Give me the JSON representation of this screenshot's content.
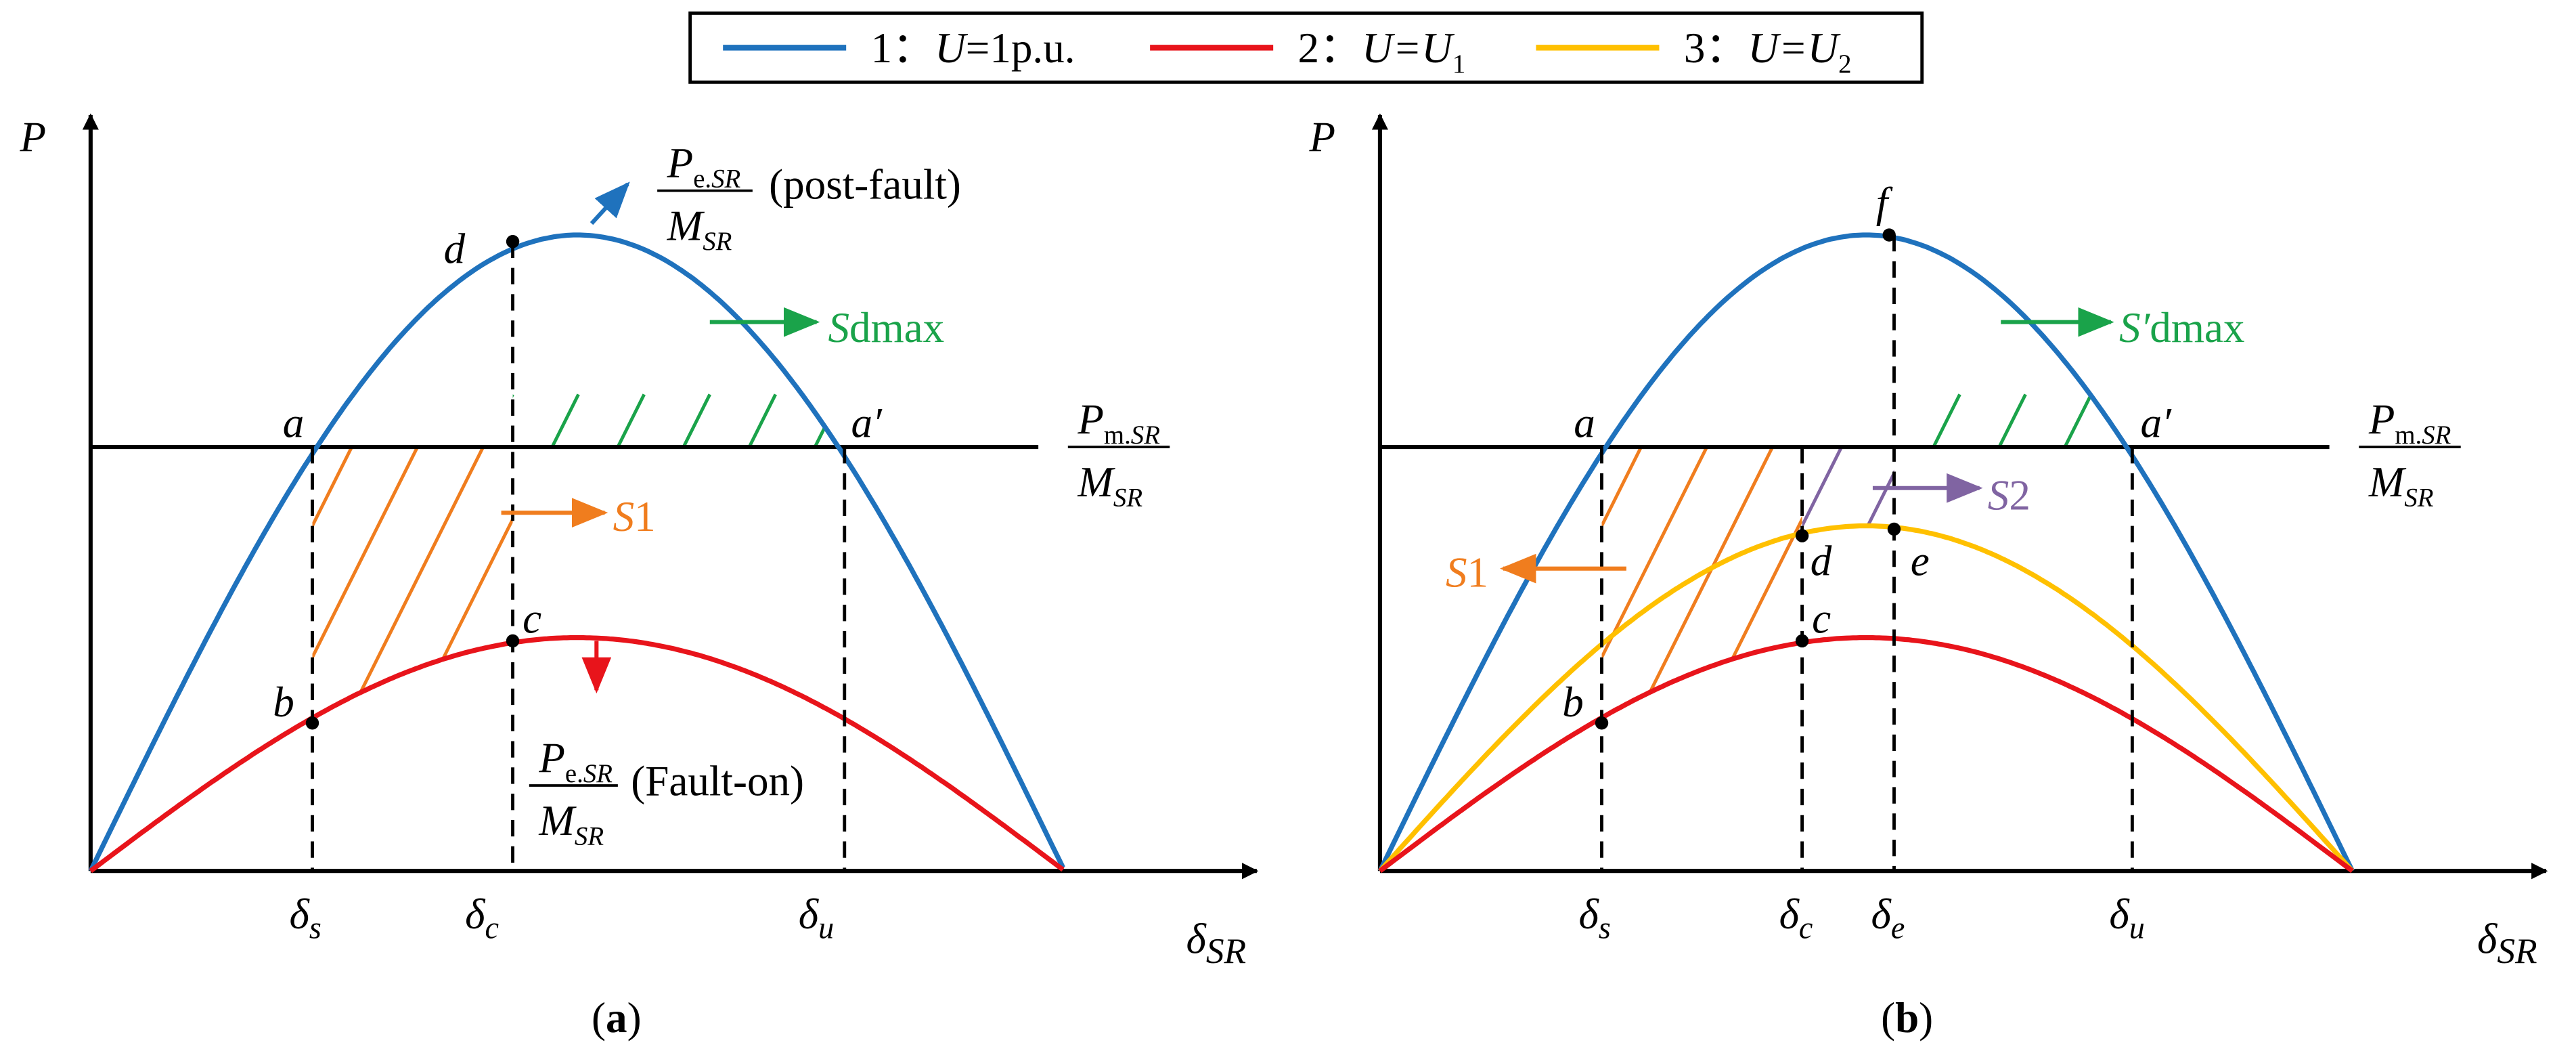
{
  "legend": [
    {
      "number": "1：",
      "variable": "U",
      "equals": "=1p.u."
    },
    {
      "number": "2：",
      "variable": "U",
      "equals": "=U",
      "subscript": "1"
    },
    {
      "number": "3：",
      "variable": "U",
      "equals": "=U",
      "subscript": "2"
    }
  ],
  "panel_a": {
    "y_axis": "P",
    "x_axis": {
      "symbol": "δ",
      "subscript": "SR"
    },
    "ticks": [
      {
        "symbol": "δ",
        "subscript": "s"
      },
      {
        "symbol": "δ",
        "subscript": "c"
      },
      {
        "symbol": "δ",
        "subscript": "u"
      }
    ],
    "points": [
      "d",
      "a",
      "a′",
      "b",
      "c"
    ],
    "post_fault": {
      "numerator": [
        "P",
        "e.",
        "SR"
      ],
      "denominator": [
        "M",
        "SR"
      ],
      "note": "(post-fault)"
    },
    "fault_on": {
      "numerator": [
        "P",
        "e.",
        "SR"
      ],
      "denominator": [
        "M",
        "SR"
      ],
      "note": "(Fault-on)"
    },
    "mechanical": {
      "numerator": [
        "P",
        "m.",
        "SR"
      ],
      "denominator": [
        "M",
        "SR"
      ]
    },
    "areas": [
      {
        "symbol": "S",
        "subscript": "dmax"
      },
      {
        "symbol": "S",
        "subscript": "1"
      }
    ],
    "caption": [
      "(",
      "a",
      ")"
    ]
  },
  "panel_b": {
    "y_axis": "P",
    "x_axis": {
      "symbol": "δ",
      "subscript": "SR"
    },
    "ticks": [
      {
        "symbol": "δ",
        "subscript": "s"
      },
      {
        "symbol": "δ",
        "subscript": "c"
      },
      {
        "symbol": "δ",
        "subscript": "e"
      },
      {
        "symbol": "δ",
        "subscript": "u"
      }
    ],
    "points": [
      "f",
      "a",
      "a′",
      "b",
      "c",
      "d",
      "e"
    ],
    "mechanical": {
      "numerator": [
        "P",
        "m.",
        "SR"
      ],
      "denominator": [
        "M",
        "SR"
      ]
    },
    "areas": [
      {
        "symbol": "S′",
        "subscript": "dmax"
      },
      {
        "symbol": "S",
        "subscript": "2"
      },
      {
        "symbol": "S",
        "subscript": "1"
      }
    ],
    "caption": [
      "(",
      "b",
      ")"
    ]
  }
}
